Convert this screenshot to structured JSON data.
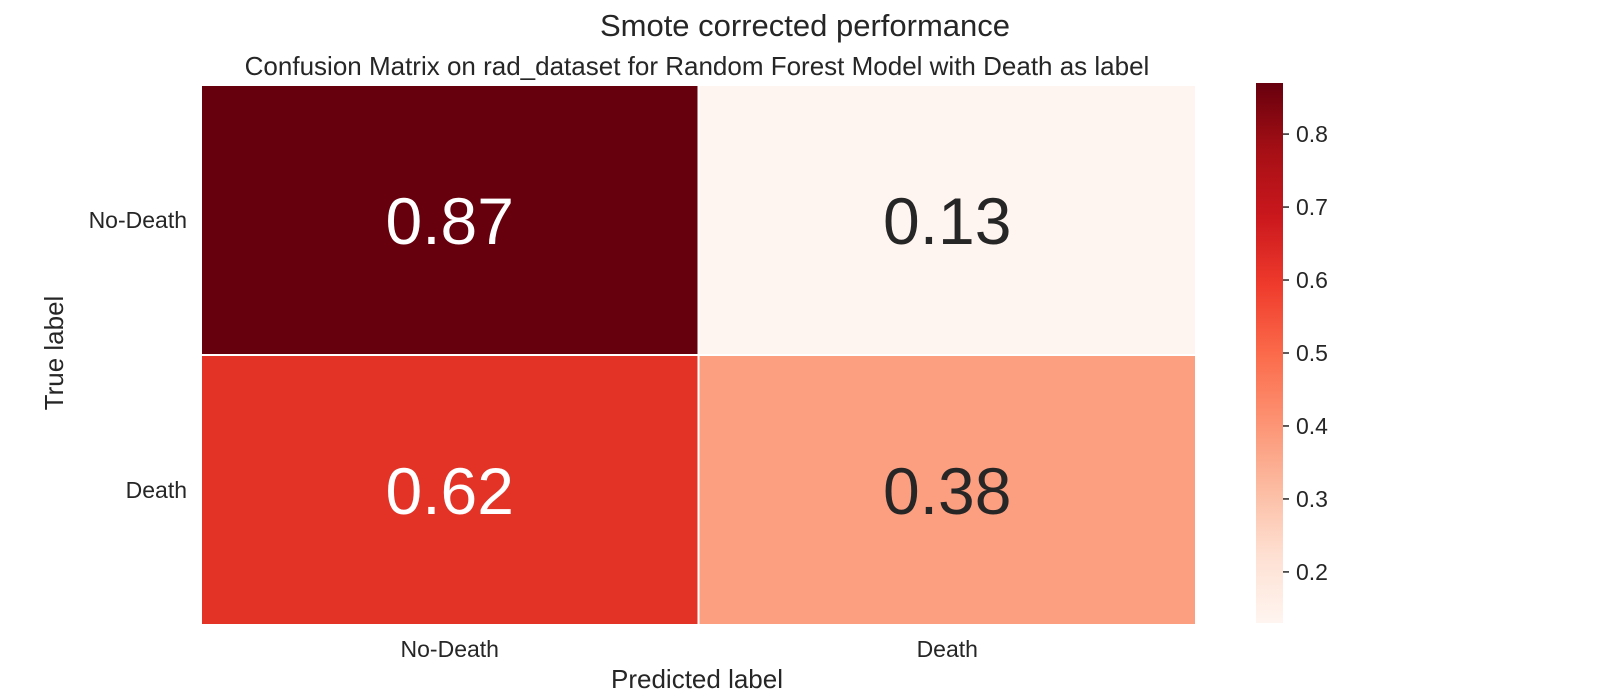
{
  "chart_data": {
    "type": "heatmap",
    "suptitle": "Smote corrected performance",
    "title": "Confusion Matrix on rad_dataset for Random Forest Model with Death as label",
    "xlabel": "Predicted label",
    "ylabel": "True label",
    "x_categories": [
      "No-Death",
      "Death"
    ],
    "y_categories": [
      "No-Death",
      "Death"
    ],
    "values": [
      [
        0.87,
        0.13
      ],
      [
        0.62,
        0.38
      ]
    ],
    "value_labels": [
      [
        "0.87",
        "0.13"
      ],
      [
        "0.62",
        "0.38"
      ]
    ],
    "colormap": "Reds",
    "colorbar": {
      "range": [
        0.13,
        0.87
      ],
      "ticks": [
        0.8,
        0.7,
        0.6,
        0.5,
        0.4,
        0.3,
        0.2
      ],
      "tick_labels": [
        "0.8",
        "0.7",
        "0.6",
        "0.5",
        "0.4",
        "0.3",
        "0.2"
      ]
    },
    "cell_colors": [
      [
        "#67000d",
        "#fff5f0"
      ],
      [
        "#e33327",
        "#fc9e80"
      ]
    ],
    "colormap_stops": [
      "#fff5f0",
      "#fee0d2",
      "#fcbba1",
      "#fc9272",
      "#fb6a4a",
      "#ef3b2c",
      "#cb181d",
      "#a50f15",
      "#67000d"
    ]
  }
}
